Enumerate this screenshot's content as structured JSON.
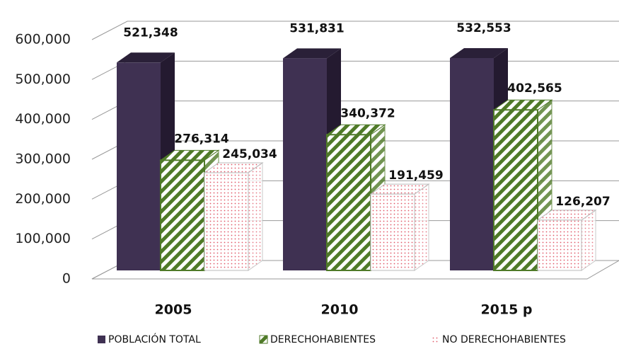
{
  "chart_data": {
    "type": "bar3d",
    "categories": [
      "2005",
      "2010",
      "2015 p"
    ],
    "series": [
      {
        "name": "POBLACIÓN TOTAL",
        "color": "#3f3152",
        "values": [
          521348,
          531831,
          532553
        ],
        "value_labels": [
          "521,348",
          "531,831",
          "532,553"
        ]
      },
      {
        "name": "DERECHOHABIENTES",
        "color": "#4f7a28",
        "values": [
          276314,
          340372,
          402565
        ],
        "value_labels": [
          "276,314",
          "340,372",
          "402,565"
        ]
      },
      {
        "name": "NO DERECHOHABIENTES",
        "color": "#e05a6a",
        "values": [
          245034,
          191459,
          126207
        ],
        "value_labels": [
          "245,034",
          "191,459",
          "126,207"
        ]
      }
    ],
    "ylim": [
      0,
      600000
    ],
    "yticks": [
      0,
      {
        "value": 100000,
        "label": "100,000"
      },
      {
        "value": 200000,
        "label": "200,000"
      },
      {
        "value": 300000,
        "label": "300,000"
      },
      {
        "value": 400000,
        "label": "400,000"
      },
      {
        "value": 500000,
        "label": "500,000"
      },
      {
        "value": 600000,
        "label": "600,000"
      }
    ],
    "grid": true,
    "legend": "bottom"
  }
}
